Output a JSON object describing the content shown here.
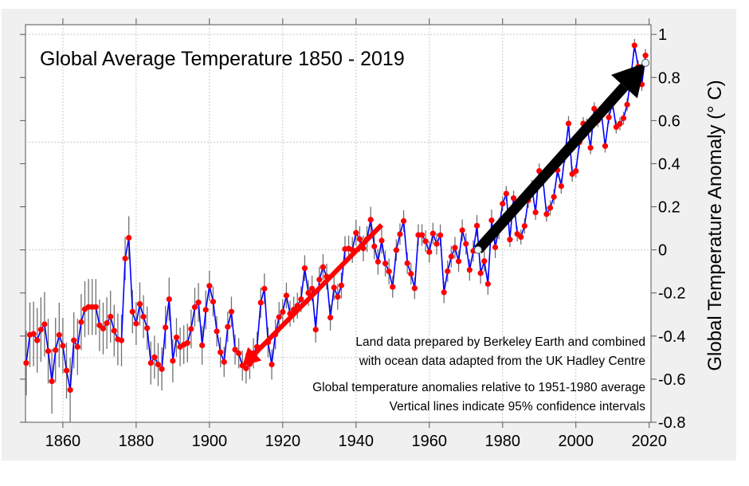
{
  "chart_data": {
    "type": "line",
    "title": "Global Average Temperature 1850 - 2019",
    "xlabel": "",
    "ylabel": "Global Temperature Anomaly (° C)",
    "xlim": [
      1849.8,
      2020.5
    ],
    "ylim": [
      -0.8,
      1.045
    ],
    "x_ticks": [
      1860,
      1880,
      1900,
      1920,
      1940,
      1960,
      1980,
      2000,
      2020
    ],
    "y_ticks": [
      1,
      0.8,
      0.6,
      0.4,
      0.2,
      0,
      -0.2,
      -0.4,
      -0.6,
      -0.8
    ],
    "y_tick_labels": [
      "1",
      "0.8",
      "0.6",
      "0.4",
      "0.2",
      "0",
      "-0.2",
      "-0.4",
      "-0.6",
      "-0.8"
    ],
    "y_axis_side": "right",
    "grid": {
      "x_every": 20,
      "y_every": 0.5
    },
    "colors": {
      "line": "#0000ff",
      "points": "#ff0000",
      "error_bars": "#707070",
      "background": "#f0f0f0",
      "warming_arrow_early": "#ff0000",
      "warming_arrow_recent": "#000000"
    },
    "x_start": 1850,
    "series": [
      {
        "values": [
          -0.525,
          -0.394,
          -0.39,
          -0.42,
          -0.37,
          -0.345,
          -0.47,
          -0.61,
          -0.465,
          -0.395,
          -0.445,
          -0.56,
          -0.65,
          -0.42,
          -0.45,
          -0.335,
          -0.275,
          -0.265,
          -0.265,
          -0.265,
          -0.35,
          -0.365,
          -0.34,
          -0.31,
          -0.375,
          -0.415,
          -0.42,
          -0.04,
          0.056,
          -0.287,
          -0.342,
          -0.251,
          -0.31,
          -0.363,
          -0.525,
          -0.498,
          -0.532,
          -0.553,
          -0.36,
          -0.229,
          -0.515,
          -0.406,
          -0.45,
          -0.44,
          -0.432,
          -0.367,
          -0.266,
          -0.244,
          -0.443,
          -0.278,
          -0.167,
          -0.24,
          -0.378,
          -0.475,
          -0.52,
          -0.357,
          -0.287,
          -0.463,
          -0.48,
          -0.537,
          -0.55,
          -0.53,
          -0.48,
          -0.45,
          -0.245,
          -0.18,
          -0.429,
          -0.532,
          -0.392,
          -0.312,
          -0.288,
          -0.212,
          -0.296,
          -0.277,
          -0.259,
          -0.229,
          -0.085,
          -0.2,
          -0.18,
          -0.37,
          -0.138,
          -0.08,
          -0.124,
          -0.314,
          -0.175,
          -0.218,
          -0.165,
          0.004,
          0.006,
          0.0,
          0.079,
          0.05,
          0.007,
          0.05,
          0.14,
          0.016,
          -0.055,
          0.043,
          -0.063,
          -0.1,
          -0.172,
          -0.001,
          0.073,
          0.134,
          -0.062,
          -0.111,
          -0.178,
          0.069,
          0.069,
          0.04,
          -0.01,
          0.076,
          0.028,
          0.068,
          -0.197,
          -0.099,
          -0.031,
          0.01,
          -0.053,
          0.091,
          0.028,
          -0.093,
          -0.005,
          0.112,
          -0.108,
          -0.052,
          -0.158,
          0.137,
          0.012,
          0.1,
          0.214,
          0.261,
          0.048,
          0.24,
          0.074,
          0.06,
          0.111,
          0.23,
          0.29,
          0.174,
          0.366,
          0.33,
          0.166,
          0.195,
          0.246,
          0.37,
          0.296,
          0.44,
          0.586,
          0.352,
          0.366,
          0.5,
          0.586,
          0.58,
          0.474,
          0.655,
          0.6,
          0.63,
          0.482,
          0.615,
          0.68,
          0.57,
          0.585,
          0.611,
          0.674,
          0.8,
          0.949,
          0.85,
          0.768,
          0.902
        ],
        "ci95": [
          0.15,
          0.15,
          0.15,
          0.15,
          0.15,
          0.15,
          0.15,
          0.15,
          0.15,
          0.15,
          0.13,
          0.13,
          0.15,
          0.13,
          0.13,
          0.13,
          0.13,
          0.13,
          0.13,
          0.13,
          0.12,
          0.12,
          0.12,
          0.12,
          0.12,
          0.12,
          0.12,
          0.1,
          0.1,
          0.1,
          0.1,
          0.1,
          0.1,
          0.1,
          0.1,
          0.1,
          0.1,
          0.1,
          0.1,
          0.1,
          0.1,
          0.09,
          0.09,
          0.09,
          0.09,
          0.09,
          0.09,
          0.09,
          0.09,
          0.09,
          0.07,
          0.07,
          0.07,
          0.07,
          0.07,
          0.07,
          0.07,
          0.07,
          0.07,
          0.07,
          0.07,
          0.07,
          0.07,
          0.07,
          0.07,
          0.07,
          0.07,
          0.07,
          0.07,
          0.07,
          0.06,
          0.06,
          0.06,
          0.06,
          0.06,
          0.06,
          0.06,
          0.06,
          0.06,
          0.06,
          0.06,
          0.06,
          0.06,
          0.06,
          0.06,
          0.06,
          0.06,
          0.06,
          0.06,
          0.06,
          0.06,
          0.06,
          0.06,
          0.06,
          0.06,
          0.06,
          0.06,
          0.06,
          0.06,
          0.06,
          0.05,
          0.05,
          0.05,
          0.05,
          0.05,
          0.05,
          0.05,
          0.05,
          0.05,
          0.05,
          0.05,
          0.05,
          0.05,
          0.05,
          0.05,
          0.05,
          0.05,
          0.05,
          0.05,
          0.05,
          0.05,
          0.05,
          0.05,
          0.05,
          0.05,
          0.05,
          0.05,
          0.05,
          0.05,
          0.05,
          0.035,
          0.035,
          0.035,
          0.035,
          0.035,
          0.035,
          0.035,
          0.035,
          0.035,
          0.035,
          0.035,
          0.035,
          0.035,
          0.035,
          0.035,
          0.035,
          0.035,
          0.035,
          0.035,
          0.035,
          0.03,
          0.03,
          0.03,
          0.03,
          0.03,
          0.03,
          0.03,
          0.03,
          0.03,
          0.03,
          0.03,
          0.03,
          0.03,
          0.03,
          0.03,
          0.03,
          0.03,
          0.03,
          0.03,
          0.03
        ]
      }
    ],
    "trend_arrows": [
      {
        "from": [
          1947,
          0.116
        ],
        "to": [
          1909,
          -0.54
        ],
        "color": "#ff0000"
      },
      {
        "from": [
          1973.3,
          0.0
        ],
        "to": [
          2019,
          0.868
        ],
        "color": "#000000"
      }
    ],
    "annotations": [
      "Land data prepared by Berkeley Earth and combined",
      "with ocean data adapted from the UK Hadley Centre",
      "Global temperature anomalies relative to 1951-1980 average",
      "Vertical lines indicate 95% confidence intervals"
    ]
  }
}
